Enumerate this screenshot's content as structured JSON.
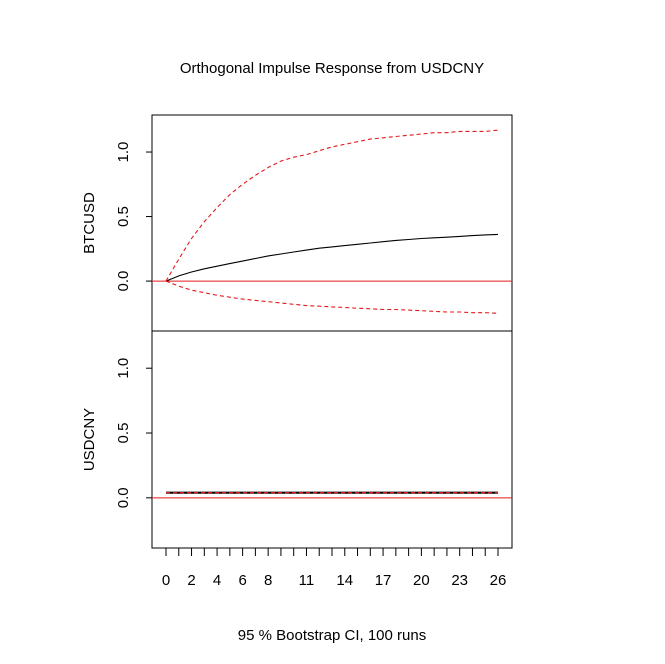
{
  "chart_data": {
    "type": "line",
    "title": "Orthogonal Impulse Response from USDCNY",
    "xlabel": "95 % Bootstrap CI,  100 runs",
    "x": [
      0,
      1,
      2,
      3,
      4,
      5,
      6,
      7,
      8,
      9,
      10,
      11,
      12,
      13,
      14,
      15,
      16,
      17,
      18,
      19,
      20,
      21,
      22,
      23,
      24,
      25,
      26
    ],
    "x_ticks": [
      0,
      2,
      4,
      6,
      8,
      11,
      14,
      17,
      20,
      23,
      26
    ],
    "xlim": [
      0,
      26
    ],
    "y_ticks": [
      "0.0",
      "0.5",
      "1.0"
    ],
    "colors": {
      "response": "#000000",
      "ci": "#e31a1c",
      "zero_line": "#e31a1c"
    },
    "panels": [
      {
        "ylabel": "BTCUSD",
        "ylim": [
          -0.32,
          1.22
        ],
        "series": [
          {
            "role": "response",
            "values": [
              0.0,
              0.04,
              0.07,
              0.095,
              0.115,
              0.135,
              0.155,
              0.175,
              0.195,
              0.21,
              0.225,
              0.24,
              0.255,
              0.265,
              0.275,
              0.285,
              0.295,
              0.305,
              0.315,
              0.322,
              0.33,
              0.335,
              0.34,
              0.346,
              0.352,
              0.358,
              0.362
            ]
          },
          {
            "role": "upper_ci",
            "values": [
              0.0,
              0.17,
              0.33,
              0.46,
              0.57,
              0.67,
              0.75,
              0.82,
              0.88,
              0.93,
              0.96,
              0.98,
              1.01,
              1.04,
              1.06,
              1.08,
              1.1,
              1.11,
              1.12,
              1.13,
              1.14,
              1.15,
              1.15,
              1.16,
              1.16,
              1.16,
              1.17
            ]
          },
          {
            "role": "lower_ci",
            "values": [
              0.0,
              -0.04,
              -0.07,
              -0.09,
              -0.11,
              -0.125,
              -0.14,
              -0.15,
              -0.16,
              -0.17,
              -0.18,
              -0.19,
              -0.195,
              -0.2,
              -0.205,
              -0.21,
              -0.215,
              -0.22,
              -0.22,
              -0.225,
              -0.23,
              -0.235,
              -0.24,
              -0.24,
              -0.245,
              -0.245,
              -0.25
            ]
          }
        ]
      },
      {
        "ylabel": "USDCNY",
        "ylim": [
          -0.32,
          1.22
        ],
        "series": [
          {
            "role": "response",
            "values": [
              0.04,
              0.04,
              0.04,
              0.04,
              0.04,
              0.04,
              0.04,
              0.04,
              0.04,
              0.04,
              0.04,
              0.04,
              0.04,
              0.04,
              0.04,
              0.04,
              0.04,
              0.04,
              0.04,
              0.04,
              0.04,
              0.04,
              0.04,
              0.04,
              0.04,
              0.04,
              0.04
            ]
          },
          {
            "role": "upper_ci",
            "values": [
              0.04,
              0.04,
              0.04,
              0.04,
              0.04,
              0.04,
              0.04,
              0.04,
              0.04,
              0.04,
              0.04,
              0.04,
              0.04,
              0.04,
              0.04,
              0.04,
              0.04,
              0.04,
              0.04,
              0.04,
              0.04,
              0.04,
              0.04,
              0.04,
              0.04,
              0.04,
              0.04
            ]
          },
          {
            "role": "lower_ci",
            "values": [
              0.04,
              0.04,
              0.04,
              0.04,
              0.04,
              0.04,
              0.04,
              0.04,
              0.04,
              0.04,
              0.04,
              0.04,
              0.04,
              0.04,
              0.04,
              0.04,
              0.04,
              0.04,
              0.04,
              0.04,
              0.04,
              0.04,
              0.04,
              0.04,
              0.04,
              0.04,
              0.04
            ]
          }
        ]
      }
    ]
  }
}
